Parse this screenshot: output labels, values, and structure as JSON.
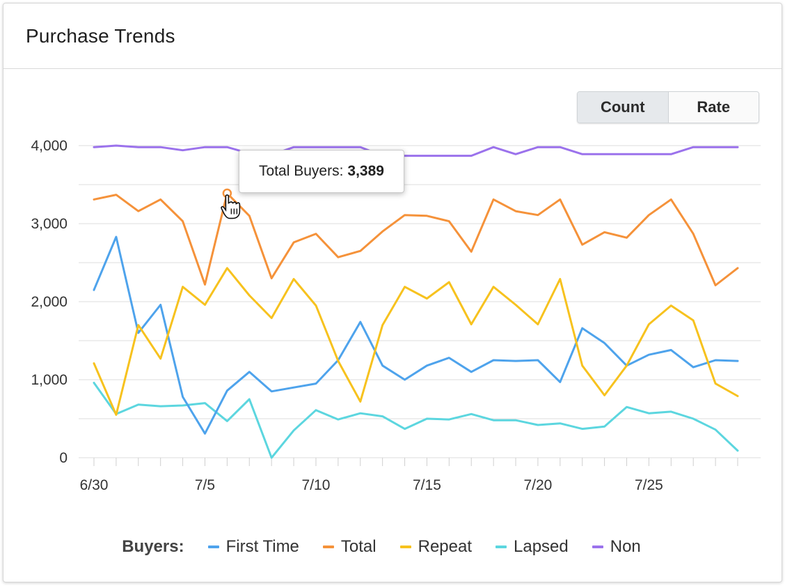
{
  "header": {
    "title": "Purchase Trends"
  },
  "toggle": {
    "count_label": "Count",
    "rate_label": "Rate",
    "selected": "Count"
  },
  "tooltip": {
    "label": "Total Buyers:",
    "value": "3,389"
  },
  "legend": {
    "title": "Buyers:"
  },
  "colors": {
    "first_time": "#4ea3ec",
    "total": "#f5923a",
    "repeat": "#f7c21e",
    "lapsed": "#5cd6df",
    "non": "#9b72ec",
    "grid": "#dcdcdc"
  },
  "chart_data": {
    "type": "line",
    "x": [
      "6/30",
      "7/1",
      "7/2",
      "7/3",
      "7/4",
      "7/5",
      "7/6",
      "7/7",
      "7/8",
      "7/9",
      "7/10",
      "7/11",
      "7/12",
      "7/13",
      "7/14",
      "7/15",
      "7/16",
      "7/17",
      "7/18",
      "7/19",
      "7/20",
      "7/21",
      "7/22",
      "7/23",
      "7/24",
      "7/25",
      "7/26",
      "7/27",
      "7/28",
      "7/29"
    ],
    "x_tick_labels": [
      "6/30",
      "7/5",
      "7/10",
      "7/15",
      "7/20",
      "7/25"
    ],
    "y_ticks": [
      0,
      1000,
      2000,
      3000,
      4000
    ],
    "y_tick_labels": [
      "0",
      "1,000",
      "2,000",
      "3,000",
      "4,000"
    ],
    "ylim": [
      0,
      4000
    ],
    "grid": true,
    "legend_position": "bottom",
    "series": [
      {
        "name": "First Time",
        "color_key": "first_time",
        "values": [
          2150,
          2830,
          1600,
          1960,
          780,
          310,
          860,
          1100,
          850,
          900,
          950,
          1250,
          1740,
          1180,
          1000,
          1180,
          1280,
          1100,
          1250,
          1240,
          1250,
          970,
          1660,
          1470,
          1180,
          1320,
          1380,
          1160,
          1250,
          1240
        ]
      },
      {
        "name": "Total",
        "color_key": "total",
        "values": [
          3310,
          3370,
          3160,
          3310,
          3030,
          2220,
          3389,
          3100,
          2300,
          2760,
          2870,
          2570,
          2650,
          2900,
          3110,
          3100,
          3030,
          2640,
          3310,
          3160,
          3110,
          3310,
          2730,
          2890,
          2820,
          3110,
          3310,
          2870,
          2210,
          2430
        ]
      },
      {
        "name": "Repeat",
        "color_key": "repeat",
        "values": [
          1210,
          550,
          1700,
          1270,
          2190,
          1960,
          2430,
          2080,
          1790,
          2290,
          1950,
          1240,
          720,
          1700,
          2190,
          2040,
          2250,
          1710,
          2190,
          1960,
          1710,
          2290,
          1180,
          800,
          1180,
          1710,
          1950,
          1760,
          950,
          790
        ]
      },
      {
        "name": "Lapsed",
        "color_key": "lapsed",
        "values": [
          960,
          560,
          680,
          660,
          670,
          700,
          470,
          750,
          0,
          350,
          610,
          490,
          570,
          530,
          370,
          500,
          490,
          560,
          480,
          480,
          420,
          440,
          370,
          400,
          650,
          570,
          590,
          500,
          360,
          90
        ]
      },
      {
        "name": "Non",
        "color_key": "non",
        "values": [
          3980,
          4000,
          3980,
          3980,
          3940,
          3980,
          3980,
          3900,
          3880,
          3980,
          3980,
          3980,
          3980,
          3870,
          3870,
          3870,
          3870,
          3870,
          3980,
          3890,
          3980,
          3980,
          3890,
          3890,
          3890,
          3890,
          3890,
          3980,
          3980,
          3980
        ]
      }
    ],
    "highlight": {
      "series": "Total",
      "x": "7/6",
      "value": 3389
    }
  }
}
